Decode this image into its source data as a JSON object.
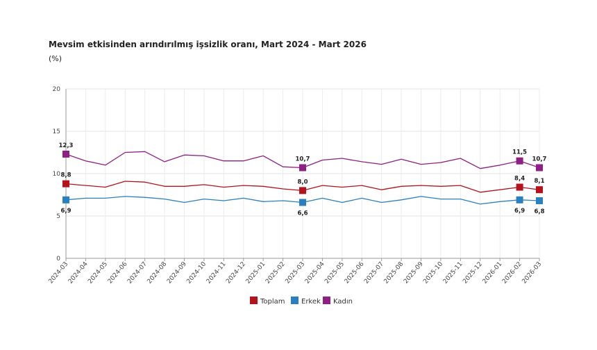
{
  "chart_data": {
    "type": "line",
    "title": "Mevsim etkisinden arındırılmış işsizlik oranı, Mart 2024 - Mart 2026",
    "ylabel": "(%)",
    "xlabel": "",
    "ylim": [
      0,
      20
    ],
    "yticks": [
      "0",
      "5",
      "10",
      "15",
      "20"
    ],
    "categories": [
      "2024-03",
      "2024-04",
      "2024-05",
      "2024-06",
      "2024-07",
      "2024-08",
      "2024-09",
      "2024-10",
      "2024-11",
      "2024-12",
      "2025-01",
      "2025-02",
      "2025-03",
      "2025-04",
      "2025-05",
      "2025-06",
      "2025-07",
      "2025-08",
      "2025-09",
      "2025-10",
      "2025-11",
      "2025-12",
      "2026-01",
      "2026-02",
      "2026-03"
    ],
    "series": [
      {
        "name": "Toplam",
        "color": "#b5121b",
        "values": [
          8.8,
          8.6,
          8.4,
          9.1,
          9.0,
          8.5,
          8.5,
          8.7,
          8.4,
          8.6,
          8.5,
          8.2,
          8.0,
          8.6,
          8.4,
          8.6,
          8.1,
          8.5,
          8.6,
          8.5,
          8.6,
          7.8,
          8.1,
          8.4,
          8.1
        ]
      },
      {
        "name": "Erkek",
        "color": "#2a7fc1",
        "values": [
          6.9,
          7.1,
          7.1,
          7.3,
          7.2,
          7.0,
          6.6,
          7.0,
          6.8,
          7.1,
          6.7,
          6.8,
          6.6,
          7.1,
          6.6,
          7.1,
          6.6,
          6.9,
          7.3,
          7.0,
          7.0,
          6.4,
          6.7,
          6.9,
          6.8
        ]
      },
      {
        "name": "Kadın",
        "color": "#8e1f84",
        "values": [
          12.3,
          11.5,
          11.0,
          12.5,
          12.6,
          11.4,
          12.2,
          12.1,
          11.5,
          11.5,
          12.1,
          10.8,
          10.7,
          11.6,
          11.8,
          11.4,
          11.1,
          11.7,
          11.1,
          11.3,
          11.8,
          10.6,
          11.0,
          11.5,
          10.7
        ]
      }
    ],
    "data_labels": [
      {
        "series": 2,
        "index": 0,
        "text": "12,3"
      },
      {
        "series": 0,
        "index": 0,
        "text": "8,8"
      },
      {
        "series": 1,
        "index": 0,
        "text": "6,9"
      },
      {
        "series": 2,
        "index": 12,
        "text": "10,7"
      },
      {
        "series": 0,
        "index": 12,
        "text": "8,0"
      },
      {
        "series": 1,
        "index": 12,
        "text": "6,6"
      },
      {
        "series": 2,
        "index": 23,
        "text": "11,5"
      },
      {
        "series": 0,
        "index": 23,
        "text": "8,4"
      },
      {
        "series": 1,
        "index": 23,
        "text": "6,9"
      },
      {
        "series": 2,
        "index": 24,
        "text": "10,7"
      },
      {
        "series": 0,
        "index": 24,
        "text": "8,1"
      },
      {
        "series": 1,
        "index": 24,
        "text": "6,8"
      }
    ],
    "legend": [
      "Toplam",
      "Erkek",
      "Kadın"
    ],
    "legend_position": "bottom"
  }
}
